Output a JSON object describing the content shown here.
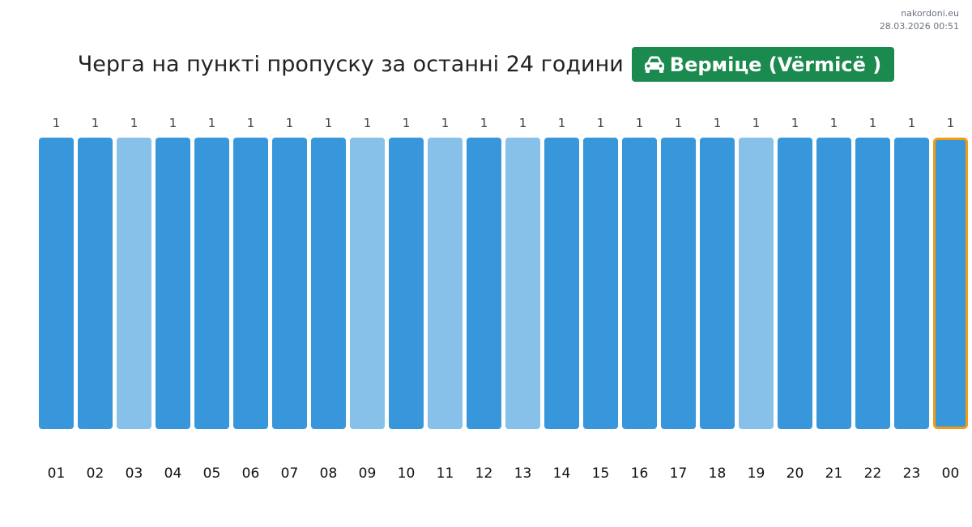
{
  "site": {
    "name": "nakordoni.eu",
    "timestamp": "28.03.2026 00:51"
  },
  "header": {
    "title": "Черга на пункті пропуску за останні 24 години",
    "crossing_name": "Верміце (Vërmicë )",
    "crossing_icon": "car-icon",
    "badge_color": "#1b8a4e"
  },
  "chart_data": {
    "type": "bar",
    "categories": [
      "01",
      "02",
      "03",
      "04",
      "05",
      "06",
      "07",
      "08",
      "09",
      "10",
      "11",
      "12",
      "13",
      "14",
      "15",
      "16",
      "17",
      "18",
      "19",
      "20",
      "21",
      "22",
      "23",
      "00"
    ],
    "values": [
      1,
      1,
      1,
      1,
      1,
      1,
      1,
      1,
      1,
      1,
      1,
      1,
      1,
      1,
      1,
      1,
      1,
      1,
      1,
      1,
      1,
      1,
      1,
      1
    ],
    "value_labels": [
      "1",
      "1",
      "1",
      "1",
      "1",
      "1",
      "1",
      "1",
      "1",
      "1",
      "1",
      "1",
      "1",
      "1",
      "1",
      "1",
      "1",
      "1",
      "1",
      "1",
      "1",
      "1",
      "1",
      "1"
    ],
    "bar_shades": [
      "dark",
      "dark",
      "light",
      "dark",
      "dark",
      "dark",
      "dark",
      "dark",
      "light",
      "dark",
      "light",
      "dark",
      "light",
      "dark",
      "dark",
      "dark",
      "dark",
      "dark",
      "light",
      "dark",
      "dark",
      "dark",
      "dark",
      "dark"
    ],
    "highlighted_category": "00",
    "colors": {
      "dark": "#3897db",
      "light": "#87c0e8",
      "highlight_border": "#f39c12"
    },
    "ylim": [
      0,
      1
    ],
    "grid": false,
    "title": "",
    "xlabel": "",
    "ylabel": ""
  }
}
